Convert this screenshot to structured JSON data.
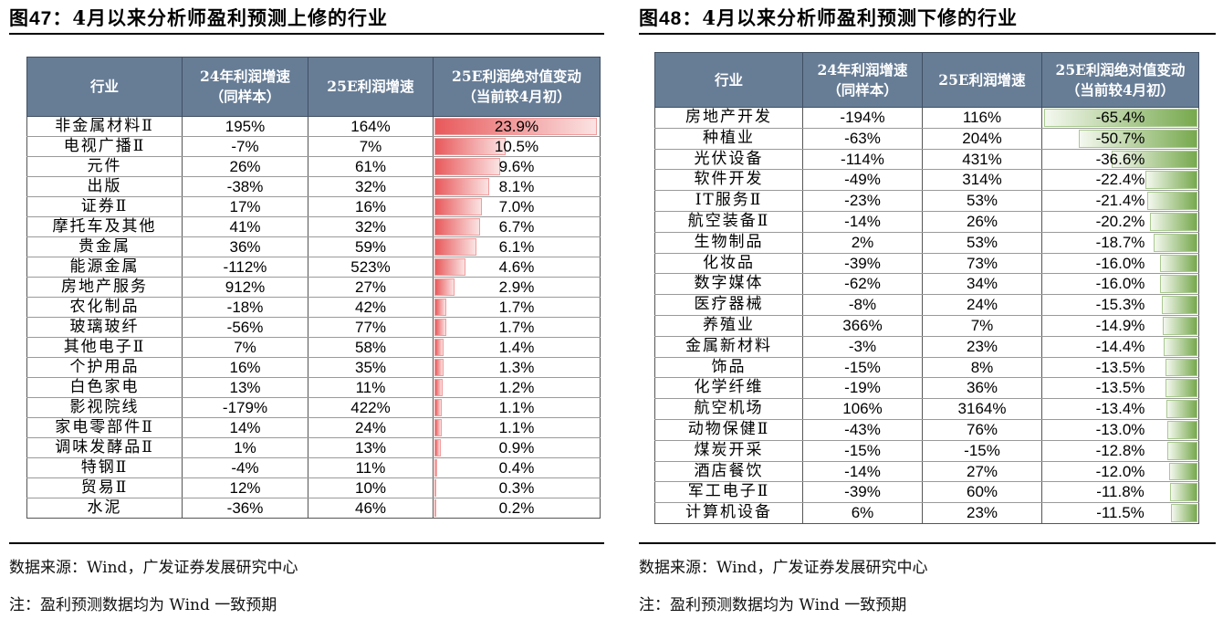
{
  "left": {
    "fig_label": "图",
    "fig_num": "47：",
    "title": "4月以来分析师盈利预测上修的行业",
    "headers": {
      "industry": "行业",
      "g24_l1": "24年利润增速",
      "g24_l2": "（同样本）",
      "g25": "25E利润增速",
      "chg_l1": "25E利润绝对值变动",
      "chg_l2": "（当前较4月初）"
    },
    "rows": [
      {
        "industry": "非金属材料Ⅱ",
        "g24": "195%",
        "g25": "164%",
        "chg": "23.9%",
        "bar": 23.9
      },
      {
        "industry": "电视广播Ⅱ",
        "g24": "-7%",
        "g25": "7%",
        "chg": "10.5%",
        "bar": 10.5
      },
      {
        "industry": "元件",
        "g24": "26%",
        "g25": "61%",
        "chg": "9.6%",
        "bar": 9.6
      },
      {
        "industry": "出版",
        "g24": "-38%",
        "g25": "32%",
        "chg": "8.1%",
        "bar": 8.1
      },
      {
        "industry": "证券Ⅱ",
        "g24": "17%",
        "g25": "16%",
        "chg": "7.0%",
        "bar": 7.0
      },
      {
        "industry": "摩托车及其他",
        "g24": "41%",
        "g25": "32%",
        "chg": "6.7%",
        "bar": 6.7
      },
      {
        "industry": "贵金属",
        "g24": "36%",
        "g25": "59%",
        "chg": "6.1%",
        "bar": 6.1
      },
      {
        "industry": "能源金属",
        "g24": "-112%",
        "g25": "523%",
        "chg": "4.6%",
        "bar": 4.6
      },
      {
        "industry": "房地产服务",
        "g24": "912%",
        "g25": "27%",
        "chg": "2.9%",
        "bar": 2.9
      },
      {
        "industry": "农化制品",
        "g24": "-18%",
        "g25": "42%",
        "chg": "1.7%",
        "bar": 1.7
      },
      {
        "industry": "玻璃玻纤",
        "g24": "-56%",
        "g25": "77%",
        "chg": "1.7%",
        "bar": 1.7
      },
      {
        "industry": "其他电子Ⅱ",
        "g24": "7%",
        "g25": "58%",
        "chg": "1.4%",
        "bar": 1.4
      },
      {
        "industry": "个护用品",
        "g24": "16%",
        "g25": "35%",
        "chg": "1.3%",
        "bar": 1.3
      },
      {
        "industry": "白色家电",
        "g24": "13%",
        "g25": "11%",
        "chg": "1.2%",
        "bar": 1.2
      },
      {
        "industry": "影视院线",
        "g24": "-179%",
        "g25": "422%",
        "chg": "1.1%",
        "bar": 1.1
      },
      {
        "industry": "家电零部件Ⅱ",
        "g24": "14%",
        "g25": "24%",
        "chg": "1.1%",
        "bar": 1.1
      },
      {
        "industry": "调味发酵品Ⅱ",
        "g24": "1%",
        "g25": "13%",
        "chg": "0.9%",
        "bar": 0.9
      },
      {
        "industry": "特钢Ⅱ",
        "g24": "-4%",
        "g25": "11%",
        "chg": "0.4%",
        "bar": 0.4
      },
      {
        "industry": "贸易Ⅱ",
        "g24": "12%",
        "g25": "10%",
        "chg": "0.3%",
        "bar": 0.3
      },
      {
        "industry": "水泥",
        "g24": "-36%",
        "g25": "46%",
        "chg": "0.2%",
        "bar": 0.2
      }
    ],
    "bar_color": "#e8595b",
    "source": "数据来源：Wind，广发证券发展研究中心",
    "note": "注：盈利预测数据均为 Wind 一致预期"
  },
  "right": {
    "fig_label": "图",
    "fig_num": "48：",
    "title": "4月以来分析师盈利预测下修的行业",
    "headers": {
      "industry": "行业",
      "g24_l1": "24年利润增速",
      "g24_l2": "（同样本）",
      "g25": "25E利润增速",
      "chg_l1": "25E利润绝对值变动",
      "chg_l2": "（当前较4月初）"
    },
    "rows": [
      {
        "industry": "房地产开发",
        "g24": "-194%",
        "g25": "116%",
        "chg": "-65.4%",
        "bar": 65.4
      },
      {
        "industry": "种植业",
        "g24": "-63%",
        "g25": "204%",
        "chg": "-50.7%",
        "bar": 50.7
      },
      {
        "industry": "光伏设备",
        "g24": "-114%",
        "g25": "431%",
        "chg": "-36.6%",
        "bar": 36.6
      },
      {
        "industry": "软件开发",
        "g24": "-49%",
        "g25": "314%",
        "chg": "-22.4%",
        "bar": 22.4
      },
      {
        "industry": "IT服务Ⅱ",
        "g24": "-23%",
        "g25": "53%",
        "chg": "-21.4%",
        "bar": 21.4
      },
      {
        "industry": "航空装备Ⅱ",
        "g24": "-14%",
        "g25": "26%",
        "chg": "-20.2%",
        "bar": 20.2
      },
      {
        "industry": "生物制品",
        "g24": "2%",
        "g25": "53%",
        "chg": "-18.7%",
        "bar": 18.7
      },
      {
        "industry": "化妆品",
        "g24": "-39%",
        "g25": "73%",
        "chg": "-16.0%",
        "bar": 16.0
      },
      {
        "industry": "数字媒体",
        "g24": "-62%",
        "g25": "34%",
        "chg": "-16.0%",
        "bar": 16.0
      },
      {
        "industry": "医疗器械",
        "g24": "-8%",
        "g25": "24%",
        "chg": "-15.3%",
        "bar": 15.3
      },
      {
        "industry": "养殖业",
        "g24": "366%",
        "g25": "7%",
        "chg": "-14.9%",
        "bar": 14.9
      },
      {
        "industry": "金属新材料",
        "g24": "-3%",
        "g25": "23%",
        "chg": "-14.4%",
        "bar": 14.4
      },
      {
        "industry": "饰品",
        "g24": "-15%",
        "g25": "8%",
        "chg": "-13.5%",
        "bar": 13.5
      },
      {
        "industry": "化学纤维",
        "g24": "-19%",
        "g25": "36%",
        "chg": "-13.5%",
        "bar": 13.5
      },
      {
        "industry": "航空机场",
        "g24": "106%",
        "g25": "3164%",
        "chg": "-13.4%",
        "bar": 13.4
      },
      {
        "industry": "动物保健Ⅱ",
        "g24": "-43%",
        "g25": "76%",
        "chg": "-13.0%",
        "bar": 13.0
      },
      {
        "industry": "煤炭开采",
        "g24": "-15%",
        "g25": "-15%",
        "chg": "-12.8%",
        "bar": 12.8
      },
      {
        "industry": "酒店餐饮",
        "g24": "-14%",
        "g25": "27%",
        "chg": "-12.0%",
        "bar": 12.0
      },
      {
        "industry": "军工电子Ⅱ",
        "g24": "-39%",
        "g25": "60%",
        "chg": "-11.8%",
        "bar": 11.8
      },
      {
        "industry": "计算机设备",
        "g24": "6%",
        "g25": "23%",
        "chg": "-11.5%",
        "bar": 11.5
      }
    ],
    "bar_color": "#77a94e",
    "source": "数据来源：Wind，广发证券发展研究中心",
    "note": "注：盈利预测数据均为 Wind 一致预期"
  }
}
